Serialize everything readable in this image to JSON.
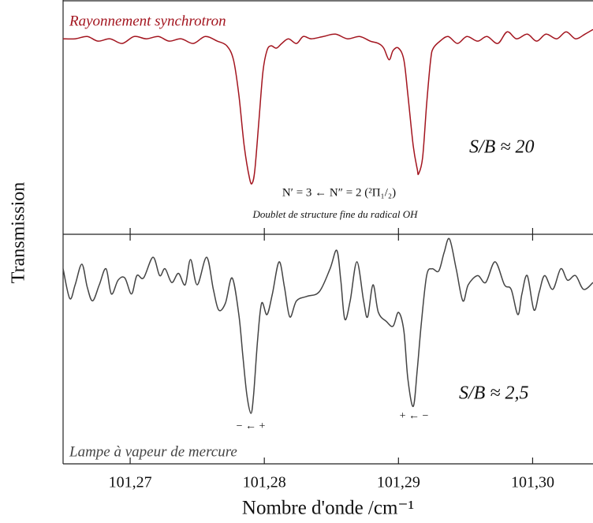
{
  "chart_data": [
    {
      "type": "line",
      "ylabel": "Transmission",
      "xlim": [
        101.265,
        101.3045
      ],
      "ylim": [
        0,
        1
      ],
      "x": [
        101.265,
        101.2659,
        101.2668,
        101.2676,
        101.2685,
        101.2694,
        101.2703,
        101.2712,
        101.2721,
        101.2729,
        101.2738,
        101.2747,
        101.2756,
        101.2765,
        101.2772,
        101.2777,
        101.2781,
        101.2785,
        101.2789,
        101.2791,
        101.2793,
        101.2796,
        101.2799,
        101.2802,
        101.2805,
        101.2809,
        101.2813,
        101.2818,
        101.2824,
        101.2829,
        101.2835,
        101.2844,
        101.2853,
        101.2862,
        101.2871,
        101.2879,
        101.2885,
        101.2889,
        101.2893,
        101.2896,
        101.29,
        101.2904,
        101.2907,
        101.2911,
        101.2914,
        101.2915,
        101.2918,
        101.2921,
        101.2924,
        101.2926,
        101.2931,
        101.2937,
        101.2944,
        101.2951,
        101.2959,
        101.2966,
        101.2974,
        101.2981,
        101.2988,
        101.2996,
        101.3003,
        101.301,
        101.3018,
        101.3025,
        101.3032,
        101.3039,
        101.3045
      ],
      "series": [
        {
          "name": "Rayonnement synchrotron",
          "color": "#a3151f",
          "values": [
            0.84,
            0.84,
            0.85,
            0.83,
            0.84,
            0.82,
            0.85,
            0.84,
            0.85,
            0.83,
            0.84,
            0.82,
            0.85,
            0.83,
            0.81,
            0.75,
            0.6,
            0.38,
            0.24,
            0.22,
            0.28,
            0.49,
            0.7,
            0.79,
            0.81,
            0.8,
            0.82,
            0.84,
            0.82,
            0.85,
            0.84,
            0.85,
            0.86,
            0.84,
            0.85,
            0.83,
            0.82,
            0.8,
            0.75,
            0.79,
            0.8,
            0.75,
            0.6,
            0.38,
            0.28,
            0.26,
            0.33,
            0.56,
            0.75,
            0.8,
            0.83,
            0.85,
            0.82,
            0.85,
            0.83,
            0.85,
            0.82,
            0.87,
            0.84,
            0.86,
            0.83,
            0.86,
            0.84,
            0.87,
            0.84,
            0.86,
            0.88
          ]
        }
      ],
      "annotations": [
        "S/B ≈ 20",
        "N′ = 3 ← N″ = 2 (²Π₁/₂)",
        "Doublet de structure fine du radical OH"
      ]
    },
    {
      "type": "line",
      "xlabel": "Nombre d'onde /cm⁻¹",
      "xlim": [
        101.265,
        101.3045
      ],
      "ylim": [
        0,
        1
      ],
      "xticks": [
        {
          "value": 101.27,
          "label": "101,27"
        },
        {
          "value": 101.28,
          "label": "101,28"
        },
        {
          "value": 101.29,
          "label": "101,29"
        },
        {
          "value": 101.3,
          "label": "101,30"
        }
      ],
      "x": [
        101.265,
        101.2655,
        101.2659,
        101.2664,
        101.2668,
        101.2672,
        101.2677,
        101.2682,
        101.2686,
        101.2691,
        101.2696,
        101.2701,
        101.2705,
        101.271,
        101.2717,
        101.2722,
        101.2726,
        101.2731,
        101.2736,
        101.2741,
        101.2745,
        101.275,
        101.2757,
        101.2762,
        101.2766,
        101.2771,
        101.2776,
        101.2781,
        101.2784,
        101.2787,
        101.279,
        101.2792,
        101.2795,
        101.2798,
        101.2802,
        101.2806,
        101.2811,
        101.2815,
        101.2819,
        101.2824,
        101.2832,
        101.2841,
        101.2849,
        101.2854,
        101.2857,
        101.286,
        101.2864,
        101.2869,
        101.2874,
        101.2877,
        101.2881,
        101.2885,
        101.2891,
        101.2896,
        101.29,
        101.2904,
        101.2907,
        101.2911,
        101.2914,
        101.2917,
        101.2921,
        101.2925,
        101.293,
        101.2934,
        101.2938,
        101.2943,
        101.2948,
        101.2952,
        101.2959,
        101.2965,
        101.2972,
        101.2979,
        101.2984,
        101.2989,
        101.2992,
        101.2996,
        101.3001,
        101.3005,
        101.3009,
        101.3015,
        101.3021,
        101.3026,
        101.3032,
        101.3038,
        101.3045
      ],
      "series": [
        {
          "name": "Lampe à vapeur de mercure",
          "color": "#444444",
          "values": [
            0.85,
            0.72,
            0.78,
            0.87,
            0.77,
            0.71,
            0.78,
            0.85,
            0.74,
            0.8,
            0.81,
            0.74,
            0.82,
            0.81,
            0.9,
            0.82,
            0.85,
            0.79,
            0.83,
            0.78,
            0.89,
            0.78,
            0.9,
            0.76,
            0.67,
            0.7,
            0.81,
            0.65,
            0.47,
            0.3,
            0.22,
            0.3,
            0.54,
            0.7,
            0.65,
            0.74,
            0.88,
            0.77,
            0.64,
            0.71,
            0.73,
            0.75,
            0.85,
            0.93,
            0.8,
            0.63,
            0.71,
            0.88,
            0.71,
            0.64,
            0.78,
            0.66,
            0.62,
            0.6,
            0.66,
            0.58,
            0.37,
            0.25,
            0.41,
            0.61,
            0.82,
            0.85,
            0.84,
            0.92,
            0.98,
            0.85,
            0.71,
            0.78,
            0.82,
            0.79,
            0.88,
            0.78,
            0.76,
            0.65,
            0.74,
            0.82,
            0.67,
            0.75,
            0.82,
            0.76,
            0.85,
            0.8,
            0.82,
            0.76,
            0.79
          ]
        }
      ],
      "annotations": [
        "S/B ≈ 2,5",
        "− ← +",
        "+ ← −"
      ]
    }
  ]
}
